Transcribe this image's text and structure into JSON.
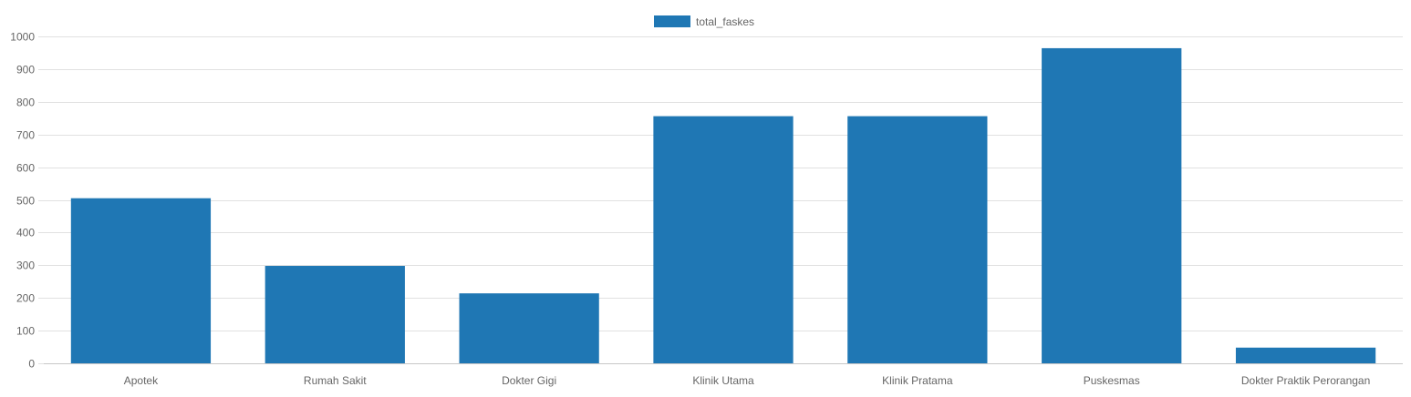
{
  "chart_data": {
    "type": "bar",
    "categories": [
      "Apotek",
      "Rumah Sakit",
      "Dokter Gigi",
      "Klinik Utama",
      "Klinik Pratama",
      "Puskesmas",
      "Dokter Praktik Perorangan"
    ],
    "series": [
      {
        "name": "total_faskes",
        "values": [
          505,
          298,
          214,
          756,
          756,
          964,
          48
        ]
      }
    ],
    "ylim": [
      0,
      1000
    ],
    "yticks": [
      0,
      100,
      200,
      300,
      400,
      500,
      600,
      700,
      800,
      900,
      1000
    ],
    "grid": true,
    "legend_position": "top-center",
    "colors": {
      "bar": "#1f77b4",
      "grid": "#e1e1e1",
      "axis": "#c8c8c8",
      "text": "#666666"
    }
  }
}
